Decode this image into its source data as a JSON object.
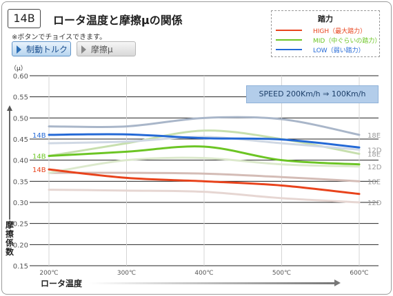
{
  "header": {
    "badge": "14B",
    "title": "ロータ温度と摩擦μの関係",
    "note": "※ボタンでチョイスできます。"
  },
  "buttons": {
    "torque_label": "制動トルク",
    "mu_label": "摩擦μ"
  },
  "legend": {
    "title": "踏力",
    "items": [
      {
        "label": "HIGH（最大踏力）",
        "color": "#e8431c"
      },
      {
        "label": "MID（中ぐらいの踏力）",
        "color": "#6cc524"
      },
      {
        "label": "LOW（弱い踏力）",
        "color": "#2469d6"
      }
    ]
  },
  "speed_label": "SPEED  200Km/h ⇒ 100Km/h",
  "axis": {
    "y_unit": "（μ）",
    "y_label": "摩擦係数",
    "x_label": "ロータ温度"
  },
  "chart_data": {
    "type": "line",
    "x": [
      200,
      300,
      400,
      500,
      600
    ],
    "x_tick_labels": [
      "200℃",
      "300℃",
      "400℃",
      "500℃",
      "600℃"
    ],
    "y_ticks": [
      "0.60",
      "0.55",
      "0.50",
      "0.45",
      "0.40",
      "0.35",
      "0.30",
      "0.25",
      "0.20",
      "0.15"
    ],
    "ylim": [
      0.15,
      0.6
    ],
    "grid": true,
    "series": [
      {
        "name": "14B",
        "group": "LOW",
        "color": "#2469d6",
        "width": 3,
        "values": [
          0.46,
          0.461,
          0.452,
          0.449,
          0.43
        ],
        "left_label": "14B"
      },
      {
        "name": "14B",
        "group": "MID",
        "color": "#6cc524",
        "width": 3,
        "values": [
          0.41,
          0.42,
          0.432,
          0.4,
          0.39
        ],
        "left_label": "14B"
      },
      {
        "name": "14B",
        "group": "HIGH",
        "color": "#e8431c",
        "width": 3,
        "values": [
          0.378,
          0.358,
          0.35,
          0.34,
          0.32
        ],
        "left_label": "14B"
      },
      {
        "name": "18E",
        "group": "LOW",
        "color": "#a9b6c9",
        "width": 3,
        "values": [
          0.48,
          0.48,
          0.5,
          0.497,
          0.46
        ],
        "right_label": "18E"
      },
      {
        "name": "18E",
        "group": "MID",
        "color": "#c7dfae",
        "width": 3,
        "values": [
          0.41,
          0.44,
          0.47,
          0.45,
          0.415
        ],
        "right_label": "18E"
      },
      {
        "name": "18E",
        "group": "HIGH",
        "color": "#d4bcb6",
        "width": 3,
        "values": [
          0.37,
          0.37,
          0.368,
          0.36,
          0.35
        ],
        "right_label": "18E"
      },
      {
        "name": "12D",
        "group": "LOW",
        "color": "#cfd8e4",
        "width": 3,
        "values": [
          0.44,
          0.444,
          0.455,
          0.44,
          0.425
        ],
        "right_label": "12D"
      },
      {
        "name": "12D",
        "group": "MID",
        "color": "#dce9cc",
        "width": 3,
        "values": [
          0.37,
          0.4,
          0.405,
          0.39,
          0.385
        ],
        "right_label": "12D"
      },
      {
        "name": "12D",
        "group": "HIGH",
        "color": "#e6d6d2",
        "width": 3,
        "values": [
          0.33,
          0.328,
          0.325,
          0.31,
          0.3
        ],
        "right_label": "12D"
      }
    ]
  }
}
